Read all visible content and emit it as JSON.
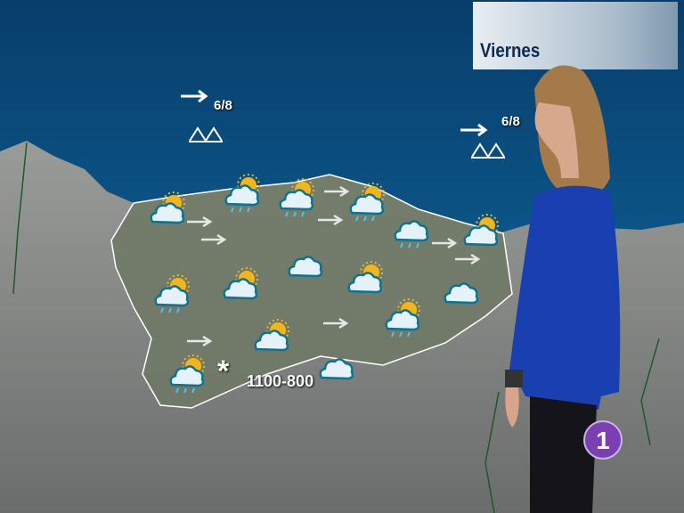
{
  "header": {
    "day": "Viernes"
  },
  "sea": {
    "labels": [
      {
        "wind_force": "6/8",
        "wind_icon": "arrow-right-icon",
        "wave_icon": "wave-icon"
      },
      {
        "wind_force": "6/8",
        "wind_icon": "arrow-right-icon",
        "wave_icon": "wave-icon"
      }
    ]
  },
  "snow": {
    "icon": "snowflake-icon",
    "level": "1100-800"
  },
  "forecast_icons": [
    "sun-cloud",
    "sun-cloud-rain",
    "sun-cloud-rain",
    "sun-cloud-rain",
    "cloud-rain",
    "sun-cloud",
    "sun-cloud-rain",
    "sun-cloud",
    "cloud",
    "sun-cloud",
    "cloud",
    "sun-cloud-rain",
    "sun-cloud",
    "sun-cloud-rain",
    "cloud"
  ],
  "wind_arrows": [
    "arrow-right-icon",
    "arrow-right-icon",
    "arrow-right-icon",
    "arrow-right-icon",
    "arrow-right-icon",
    "arrow-right-icon",
    "arrow-right-icon",
    "arrow-right-icon"
  ],
  "channel_logo": {
    "text": "1",
    "color": "#7b3fb0"
  },
  "colors": {
    "sea": "#0b4c7e",
    "land": "#8a8e8c",
    "region": "#6f7a62",
    "border": "#ffffff"
  }
}
